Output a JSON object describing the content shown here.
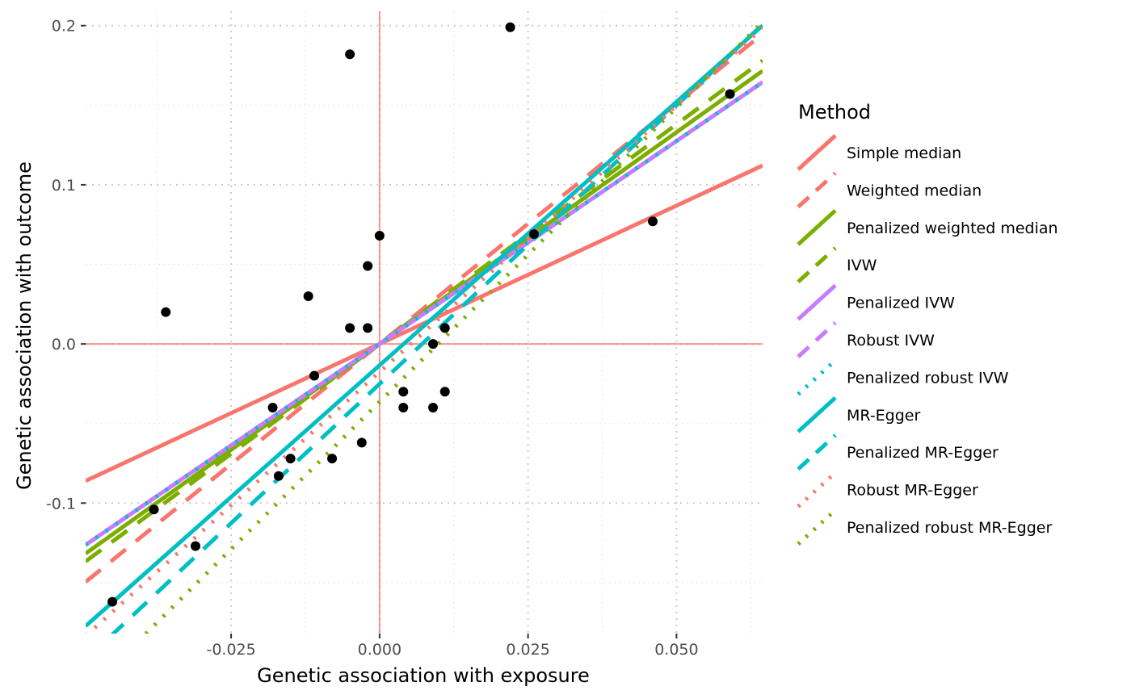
{
  "chart_data": {
    "type": "scatter",
    "title": "",
    "xlabel": "Genetic association with exposure",
    "ylabel": "Genetic association with outcome",
    "xlim": [
      -0.0495,
      0.0645
    ],
    "ylim": [
      -0.182,
      0.209
    ],
    "x_ticks": [
      -0.025,
      0.0,
      0.025,
      0.05
    ],
    "x_tick_labels": [
      "-0.025",
      "0.000",
      "0.025",
      "0.050"
    ],
    "y_ticks": [
      -0.1,
      0.0,
      0.1,
      0.2
    ],
    "y_tick_labels": [
      "-0.1",
      "0.0",
      "0.1",
      "0.2"
    ],
    "grid": true,
    "reference_lines": {
      "x": 0,
      "y": 0,
      "color": "#f8766d"
    },
    "points": [
      {
        "x": -0.045,
        "y": -0.162
      },
      {
        "x": -0.038,
        "y": -0.104
      },
      {
        "x": -0.036,
        "y": 0.02
      },
      {
        "x": -0.031,
        "y": -0.127
      },
      {
        "x": -0.018,
        "y": -0.04
      },
      {
        "x": -0.017,
        "y": -0.083
      },
      {
        "x": -0.015,
        "y": -0.072
      },
      {
        "x": -0.012,
        "y": 0.03
      },
      {
        "x": -0.011,
        "y": -0.02
      },
      {
        "x": -0.008,
        "y": -0.072
      },
      {
        "x": -0.005,
        "y": 0.182
      },
      {
        "x": -0.005,
        "y": 0.01
      },
      {
        "x": -0.003,
        "y": -0.062
      },
      {
        "x": -0.002,
        "y": 0.049
      },
      {
        "x": -0.002,
        "y": 0.01
      },
      {
        "x": 0.0,
        "y": 0.068
      },
      {
        "x": 0.004,
        "y": -0.03
      },
      {
        "x": 0.004,
        "y": -0.04
      },
      {
        "x": 0.009,
        "y": 0.0
      },
      {
        "x": 0.009,
        "y": -0.04
      },
      {
        "x": 0.011,
        "y": 0.01
      },
      {
        "x": 0.011,
        "y": -0.03
      },
      {
        "x": 0.022,
        "y": 0.199
      },
      {
        "x": 0.026,
        "y": 0.069
      },
      {
        "x": 0.046,
        "y": 0.077
      },
      {
        "x": 0.059,
        "y": 0.157
      }
    ],
    "series": [
      {
        "name": "Simple median",
        "slope": 1.738,
        "intercept": 0.0,
        "color": "#f8766d",
        "linetype": "solid"
      },
      {
        "name": "Weighted median",
        "slope": 3.02,
        "intercept": 0.0,
        "color": "#f8766d",
        "linetype": "dashed"
      },
      {
        "name": "Penalized weighted median",
        "slope": 2.66,
        "intercept": 0.0,
        "color": "#7cae00",
        "linetype": "solid"
      },
      {
        "name": "IVW",
        "slope": 2.76,
        "intercept": 0.0,
        "color": "#7cae00",
        "linetype": "dashed"
      },
      {
        "name": "Penalized IVW",
        "slope": 2.55,
        "intercept": 0.0,
        "color": "#c77cff",
        "linetype": "solid"
      },
      {
        "name": "Robust IVW",
        "slope": 2.55,
        "intercept": 0.0,
        "color": "#c77cff",
        "linetype": "dashed"
      },
      {
        "name": "Penalized robust IVW",
        "slope": 2.55,
        "intercept": 0.0,
        "color": "#00bfc4",
        "linetype": "dotted"
      },
      {
        "name": "MR-Egger",
        "slope": 3.31,
        "intercept": -0.0134,
        "color": "#00bfc4",
        "linetype": "solid"
      },
      {
        "name": "Penalized MR-Egger",
        "slope": 3.5,
        "intercept": -0.0251,
        "color": "#00bfc4",
        "linetype": "dashed"
      },
      {
        "name": "Robust MR-Egger",
        "slope": 3.35,
        "intercept": -0.0176,
        "color": "#f8766d",
        "linetype": "dotted"
      },
      {
        "name": "Penalized robust MR-Egger",
        "slope": 3.7,
        "intercept": -0.0364,
        "color": "#7cae00",
        "linetype": "dotted"
      }
    ],
    "legend": {
      "title": "Method",
      "position": "right"
    }
  }
}
